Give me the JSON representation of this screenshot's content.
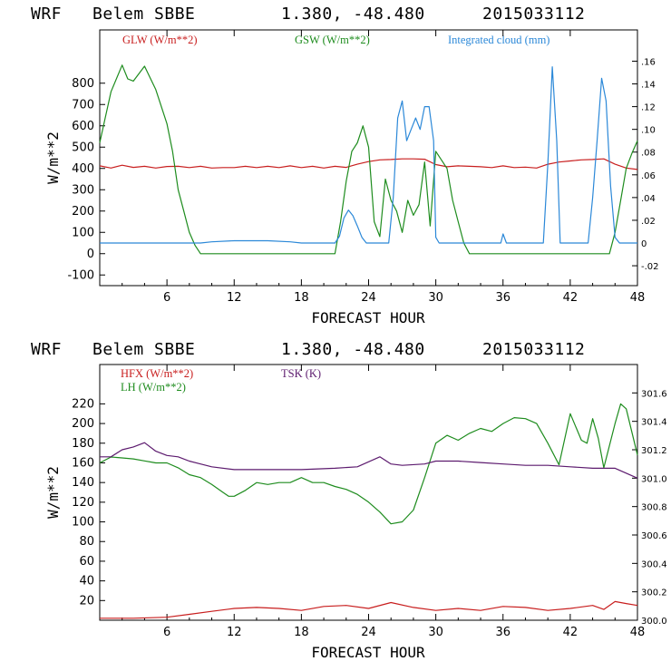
{
  "chart_data": [
    {
      "type": "line",
      "header": {
        "model": "WRF",
        "station": "Belem SBBE",
        "coords": "1.380, -48.480",
        "run": "2015033112"
      },
      "xlabel": "FORECAST HOUR",
      "ylabel": "W/m**2",
      "xlim": [
        0,
        48
      ],
      "ylim": [
        -150,
        1050
      ],
      "y2lim": [
        -0.0375,
        0.1875
      ],
      "xticks": [
        "6",
        "12",
        "18",
        "24",
        "30",
        "36",
        "42",
        "48"
      ],
      "yticks": [
        "-100",
        "0",
        "100",
        "200",
        "300",
        "400",
        "500",
        "600",
        "700",
        "800"
      ],
      "y2ticks": [
        "-.02",
        "0",
        ".02",
        ".04",
        ".06",
        ".08",
        ".10",
        ".12",
        ".14",
        ".16"
      ],
      "series": [
        {
          "name": "GLW (W/m**2)",
          "color": "#c81e1e",
          "axis": "left",
          "points": [
            [
              0,
              412
            ],
            [
              1,
              402
            ],
            [
              2,
              415
            ],
            [
              3,
              405
            ],
            [
              4,
              410
            ],
            [
              5,
              402
            ],
            [
              6,
              409
            ],
            [
              7,
              410
            ],
            [
              8,
              404
            ],
            [
              9,
              410
            ],
            [
              10,
              402
            ],
            [
              11,
              404
            ],
            [
              12,
              404
            ],
            [
              13,
              410
            ],
            [
              14,
              404
            ],
            [
              15,
              410
            ],
            [
              16,
              404
            ],
            [
              17,
              412
            ],
            [
              18,
              404
            ],
            [
              19,
              410
            ],
            [
              20,
              402
            ],
            [
              21,
              410
            ],
            [
              22,
              405
            ],
            [
              23,
              420
            ],
            [
              24,
              432
            ],
            [
              25,
              440
            ],
            [
              26,
              442
            ],
            [
              27,
              445
            ],
            [
              28,
              445
            ],
            [
              29,
              443
            ],
            [
              30,
              418
            ],
            [
              31,
              408
            ],
            [
              32,
              412
            ],
            [
              33,
              410
            ],
            [
              34,
              408
            ],
            [
              35,
              404
            ],
            [
              36,
              412
            ],
            [
              37,
              404
            ],
            [
              38,
              406
            ],
            [
              39,
              402
            ],
            [
              40,
              420
            ],
            [
              41,
              430
            ],
            [
              42,
              435
            ],
            [
              43,
              440
            ],
            [
              44,
              442
            ],
            [
              45,
              445
            ],
            [
              46,
              420
            ],
            [
              47,
              402
            ],
            [
              48,
              395
            ]
          ]
        },
        {
          "name": "GSW (W/m**2)",
          "color": "#1e8c1e",
          "axis": "left",
          "points": [
            [
              0,
              520
            ],
            [
              0.5,
              640
            ],
            [
              1,
              760
            ],
            [
              2,
              885
            ],
            [
              2.5,
              820
            ],
            [
              3,
              810
            ],
            [
              4,
              880
            ],
            [
              5,
              770
            ],
            [
              6,
              610
            ],
            [
              6.5,
              480
            ],
            [
              7,
              300
            ],
            [
              7.5,
              200
            ],
            [
              8,
              100
            ],
            [
              8.5,
              40
            ],
            [
              9,
              0
            ],
            [
              21,
              0
            ],
            [
              21.5,
              150
            ],
            [
              22,
              340
            ],
            [
              22.5,
              480
            ],
            [
              23,
              520
            ],
            [
              23.5,
              600
            ],
            [
              24,
              500
            ],
            [
              24.5,
              150
            ],
            [
              25,
              80
            ],
            [
              25.5,
              350
            ],
            [
              26,
              250
            ],
            [
              26.5,
              200
            ],
            [
              27,
              100
            ],
            [
              27.5,
              250
            ],
            [
              28,
              180
            ],
            [
              28.5,
              230
            ],
            [
              29,
              430
            ],
            [
              29.5,
              130
            ],
            [
              30,
              480
            ],
            [
              31,
              400
            ],
            [
              31.5,
              250
            ],
            [
              32,
              150
            ],
            [
              32.5,
              50
            ],
            [
              33,
              0
            ],
            [
              45.5,
              0
            ],
            [
              46,
              100
            ],
            [
              46.5,
              250
            ],
            [
              47,
              400
            ],
            [
              47.5,
              470
            ],
            [
              48,
              530
            ]
          ]
        },
        {
          "name": "Integrated cloud (mm)",
          "color": "#2b88d8",
          "axis": "right",
          "points": [
            [
              0,
              0
            ],
            [
              9,
              0
            ],
            [
              10,
              0.001
            ],
            [
              12,
              0.002
            ],
            [
              13,
              0.002
            ],
            [
              15,
              0.002
            ],
            [
              17,
              0.001
            ],
            [
              18,
              0
            ],
            [
              21,
              0
            ],
            [
              21.4,
              0.006
            ],
            [
              21.8,
              0.022
            ],
            [
              22.2,
              0.029
            ],
            [
              22.6,
              0.024
            ],
            [
              23,
              0.015
            ],
            [
              23.4,
              0.005
            ],
            [
              23.8,
              0
            ],
            [
              25.8,
              0
            ],
            [
              26.2,
              0.04
            ],
            [
              26.6,
              0.11
            ],
            [
              27,
              0.125
            ],
            [
              27.4,
              0.09
            ],
            [
              27.8,
              0.1
            ],
            [
              28.2,
              0.11
            ],
            [
              28.6,
              0.1
            ],
            [
              29,
              0.12
            ],
            [
              29.4,
              0.12
            ],
            [
              29.8,
              0.09
            ],
            [
              30,
              0.005
            ],
            [
              30.3,
              0
            ],
            [
              35.8,
              0
            ],
            [
              36,
              0.008
            ],
            [
              36.3,
              0
            ],
            [
              39.6,
              0
            ],
            [
              40,
              0.07
            ],
            [
              40.4,
              0.155
            ],
            [
              40.8,
              0.09
            ],
            [
              41.1,
              0
            ],
            [
              43.6,
              0
            ],
            [
              44,
              0.04
            ],
            [
              44.4,
              0.09
            ],
            [
              44.8,
              0.145
            ],
            [
              45.2,
              0.125
            ],
            [
              45.6,
              0.05
            ],
            [
              46,
              0.005
            ],
            [
              46.4,
              0
            ],
            [
              48,
              0
            ]
          ]
        }
      ]
    },
    {
      "type": "line",
      "header": {
        "model": "WRF",
        "station": "Belem SBBE",
        "coords": "1.380, -48.480",
        "run": "2015033112"
      },
      "xlabel": "FORECAST HOUR",
      "ylabel": "W/m**2",
      "xlim": [
        0,
        48
      ],
      "ylim": [
        0,
        260
      ],
      "y2lim": [
        300.0,
        301.8
      ],
      "xticks": [
        "6",
        "12",
        "18",
        "24",
        "30",
        "36",
        "42",
        "48"
      ],
      "yticks": [
        "20",
        "40",
        "60",
        "80",
        "100",
        "120",
        "140",
        "160",
        "180",
        "200",
        "220"
      ],
      "y2ticks": [
        "300.0",
        "300.2",
        "300.4",
        "300.6",
        "300.8",
        "301.0",
        "301.2",
        "301.4",
        "301.6"
      ],
      "series": [
        {
          "name": "HFX (W/m**2)",
          "color": "#c81e1e",
          "axis": "left",
          "points": [
            [
              0,
              2
            ],
            [
              3,
              2
            ],
            [
              6,
              3
            ],
            [
              8,
              6
            ],
            [
              10,
              9
            ],
            [
              12,
              12
            ],
            [
              14,
              13
            ],
            [
              16,
              12
            ],
            [
              18,
              10
            ],
            [
              20,
              14
            ],
            [
              22,
              15
            ],
            [
              24,
              12
            ],
            [
              26,
              18
            ],
            [
              28,
              13
            ],
            [
              30,
              10
            ],
            [
              32,
              12
            ],
            [
              34,
              10
            ],
            [
              36,
              14
            ],
            [
              38,
              13
            ],
            [
              40,
              10
            ],
            [
              42,
              12
            ],
            [
              44,
              15
            ],
            [
              45,
              11
            ],
            [
              46,
              19
            ],
            [
              47,
              17
            ],
            [
              48,
              15
            ]
          ]
        },
        {
          "name": "LH (W/m**2)",
          "color": "#1e8c1e",
          "axis": "left",
          "points": [
            [
              0,
              160
            ],
            [
              1,
              166
            ],
            [
              2,
              165
            ],
            [
              3,
              164
            ],
            [
              4,
              162
            ],
            [
              5,
              160
            ],
            [
              6,
              160
            ],
            [
              7,
              155
            ],
            [
              8,
              148
            ],
            [
              9,
              145
            ],
            [
              10,
              138
            ],
            [
              11,
              130
            ],
            [
              11.5,
              126
            ],
            [
              12,
              126
            ],
            [
              13,
              132
            ],
            [
              14,
              140
            ],
            [
              15,
              138
            ],
            [
              16,
              140
            ],
            [
              17,
              140
            ],
            [
              18,
              145
            ],
            [
              19,
              140
            ],
            [
              20,
              140
            ],
            [
              21,
              136
            ],
            [
              22,
              133
            ],
            [
              23,
              128
            ],
            [
              24,
              120
            ],
            [
              25,
              110
            ],
            [
              26,
              98
            ],
            [
              27,
              100
            ],
            [
              28,
              112
            ],
            [
              29,
              145
            ],
            [
              30,
              180
            ],
            [
              31,
              188
            ],
            [
              32,
              183
            ],
            [
              33,
              190
            ],
            [
              34,
              195
            ],
            [
              35,
              192
            ],
            [
              36,
              200
            ],
            [
              37,
              206
            ],
            [
              38,
              205
            ],
            [
              39,
              200
            ],
            [
              40,
              180
            ],
            [
              41,
              158
            ],
            [
              42,
              210
            ],
            [
              43,
              183
            ],
            [
              43.5,
              180
            ],
            [
              44,
              205
            ],
            [
              44.5,
              185
            ],
            [
              45,
              155
            ],
            [
              46,
              200
            ],
            [
              46.5,
              220
            ],
            [
              47,
              215
            ],
            [
              48,
              168
            ]
          ]
        },
        {
          "name": "TSK (K)",
          "color": "#5c1a6e",
          "axis": "right",
          "points": [
            [
              0,
              301.15
            ],
            [
              1,
              301.15
            ],
            [
              2,
              301.2
            ],
            [
              3,
              301.22
            ],
            [
              4,
              301.25
            ],
            [
              5,
              301.19
            ],
            [
              6,
              301.16
            ],
            [
              7,
              301.15
            ],
            [
              8,
              301.12
            ],
            [
              9,
              301.1
            ],
            [
              10,
              301.08
            ],
            [
              12,
              301.06
            ],
            [
              15,
              301.06
            ],
            [
              18,
              301.06
            ],
            [
              21,
              301.07
            ],
            [
              23,
              301.08
            ],
            [
              25,
              301.15
            ],
            [
              26,
              301.1
            ],
            [
              27,
              301.09
            ],
            [
              29,
              301.1
            ],
            [
              30,
              301.12
            ],
            [
              32,
              301.12
            ],
            [
              34,
              301.11
            ],
            [
              36,
              301.1
            ],
            [
              38,
              301.09
            ],
            [
              40,
              301.09
            ],
            [
              42,
              301.08
            ],
            [
              44,
              301.07
            ],
            [
              46,
              301.07
            ],
            [
              48,
              301.0
            ]
          ]
        }
      ]
    }
  ]
}
